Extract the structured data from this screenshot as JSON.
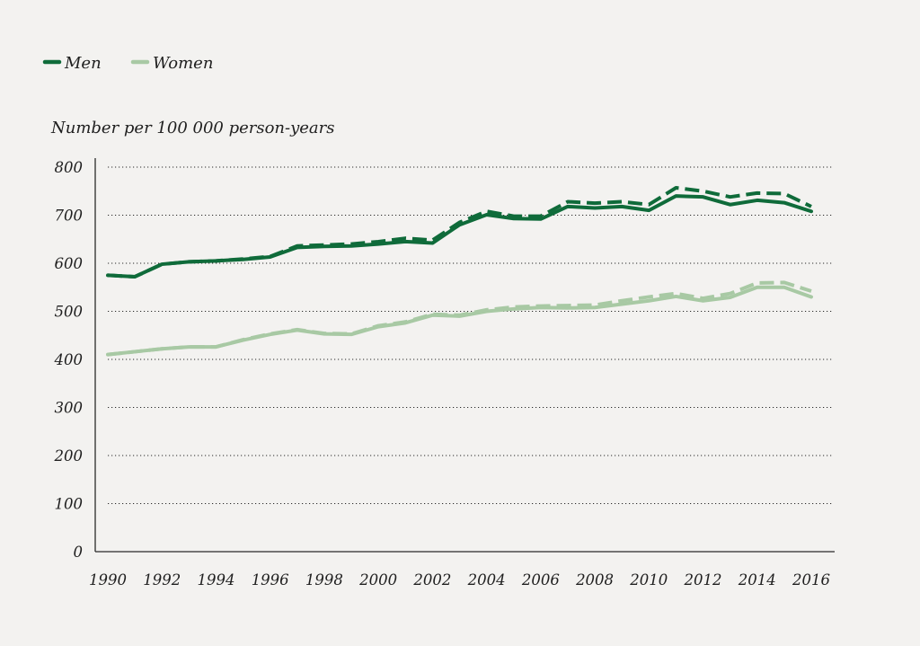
{
  "chart_data": {
    "type": "line",
    "ylabel": "Number per 100 000 person-years",
    "xlabel": "",
    "ylim": [
      0,
      800
    ],
    "xlim": [
      1990,
      2016
    ],
    "y_ticks": [
      "800",
      "700",
      "600",
      "500",
      "400",
      "300",
      "200",
      "100",
      "0"
    ],
    "y_tick_values": [
      800,
      700,
      600,
      500,
      400,
      300,
      200,
      100,
      0
    ],
    "x_ticks": [
      "1990",
      "1992",
      "1994",
      "1996",
      "1998",
      "2000",
      "2002",
      "2004",
      "2006",
      "2008",
      "2010",
      "2012",
      "2014",
      "2016"
    ],
    "x_tick_values": [
      1990,
      1992,
      1994,
      1996,
      1998,
      2000,
      2002,
      2004,
      2006,
      2008,
      2010,
      2012,
      2014,
      2016
    ],
    "grid": "horizontal dotted",
    "legend_position": "top-left",
    "legend": [
      {
        "label": "Men",
        "color": "#0f6b3a"
      },
      {
        "label": "Women",
        "color": "#a8c9a4"
      }
    ],
    "x": [
      1990,
      1991,
      1992,
      1993,
      1994,
      1995,
      1996,
      1997,
      1998,
      1999,
      2000,
      2001,
      2002,
      2003,
      2004,
      2005,
      2006,
      2007,
      2008,
      2009,
      2010,
      2011,
      2012,
      2013,
      2014,
      2015,
      2016
    ],
    "series": [
      {
        "name": "Men",
        "style": "solid",
        "color": "#0f6b3a",
        "values": [
          575,
          572,
          598,
          603,
          605,
          608,
          613,
          633,
          635,
          636,
          640,
          645,
          642,
          680,
          701,
          693,
          692,
          718,
          715,
          718,
          710,
          740,
          738,
          722,
          731,
          726,
          708
        ]
      },
      {
        "name": "Men",
        "style": "dashed",
        "color": "#0f6b3a",
        "values": [
          575,
          572,
          598,
          603,
          605,
          609,
          614,
          636,
          638,
          640,
          645,
          652,
          648,
          685,
          708,
          698,
          698,
          728,
          725,
          728,
          722,
          757,
          750,
          738,
          746,
          745,
          718
        ]
      },
      {
        "name": "Women",
        "style": "solid",
        "color": "#a8c9a4",
        "values": [
          410,
          416,
          422,
          426,
          426,
          440,
          452,
          461,
          453,
          452,
          468,
          476,
          492,
          490,
          500,
          505,
          508,
          507,
          508,
          515,
          522,
          531,
          522,
          529,
          550,
          550,
          530
        ]
      },
      {
        "name": "Women",
        "style": "dashed",
        "color": "#a8c9a4",
        "values": [
          410,
          416,
          422,
          426,
          426,
          441,
          453,
          462,
          454,
          453,
          470,
          478,
          494,
          492,
          503,
          509,
          511,
          512,
          513,
          522,
          530,
          537,
          527,
          537,
          559,
          560,
          542
        ]
      }
    ]
  }
}
